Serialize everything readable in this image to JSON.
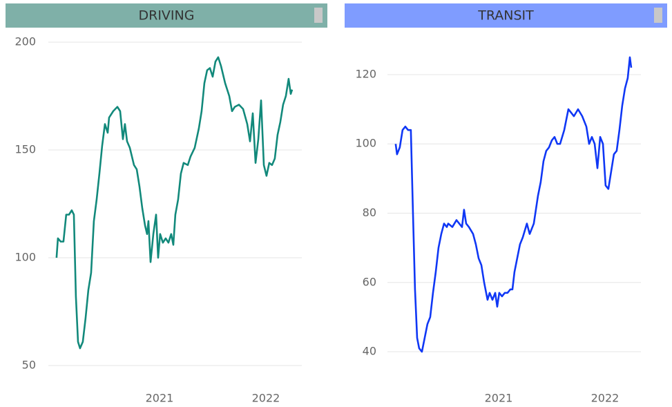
{
  "chart_data": [
    {
      "type": "line",
      "title": "DRIVING",
      "color": "#12897b",
      "header_color": "#7fb0a8",
      "xlim": [
        2019.955,
        2022.338
      ],
      "xticks": [
        2021,
        2022
      ],
      "ylim": [
        45,
        202
      ],
      "yticks": [
        50,
        100,
        150,
        200
      ],
      "grid": true,
      "x": [
        2020.032,
        2020.045,
        2020.071,
        2020.097,
        2020.123,
        2020.149,
        2020.175,
        2020.195,
        2020.214,
        2020.234,
        2020.253,
        2020.279,
        2020.305,
        2020.331,
        2020.357,
        2020.383,
        2020.409,
        2020.435,
        2020.461,
        2020.487,
        2020.513,
        2020.526,
        2020.565,
        2020.604,
        2020.63,
        2020.656,
        2020.675,
        2020.695,
        2020.721,
        2020.76,
        2020.786,
        2020.812,
        2020.838,
        2020.864,
        2020.883,
        2020.896,
        2020.916,
        2020.942,
        2020.968,
        2020.987,
        2021.006,
        2021.032,
        2021.058,
        2021.084,
        2021.11,
        2021.13,
        2021.149,
        2021.175,
        2021.201,
        2021.227,
        2021.266,
        2021.292,
        2021.331,
        2021.37,
        2021.396,
        2021.422,
        2021.448,
        2021.474,
        2021.5,
        2021.526,
        2021.552,
        2021.578,
        2021.617,
        2021.656,
        2021.682,
        2021.708,
        2021.747,
        2021.786,
        2021.825,
        2021.851,
        2021.877,
        2021.903,
        2021.929,
        2021.955,
        2021.981,
        2022.006,
        2022.032,
        2022.058,
        2022.084,
        2022.11,
        2022.136,
        2022.162,
        2022.188,
        2022.214,
        2022.234,
        2022.247
      ],
      "values": [
        100,
        109,
        107.5,
        107.5,
        120,
        120,
        122,
        120,
        82,
        61,
        58,
        61,
        72,
        85,
        93,
        117,
        127,
        139,
        152,
        162,
        158,
        165,
        168,
        170,
        168,
        155,
        162,
        154,
        151,
        143,
        141,
        133,
        123,
        115,
        111,
        117,
        98,
        111,
        120,
        100,
        111,
        107,
        109,
        107,
        111,
        106,
        120,
        127,
        139,
        144,
        143,
        147,
        151,
        160,
        168,
        181,
        187,
        188,
        184,
        191,
        193,
        189,
        181,
        175,
        168,
        170,
        171,
        169,
        162,
        154,
        167,
        144,
        155,
        173,
        143,
        138,
        144,
        143,
        146,
        157,
        163,
        171,
        175,
        183,
        176,
        178
      ]
    },
    {
      "type": "line",
      "title": "TRANSIT",
      "color": "#0f37f5",
      "header_color": "#7f9cff",
      "xlim": [
        2019.955,
        2022.338
      ],
      "xticks": [
        2021,
        2022
      ],
      "ylim": [
        35,
        126
      ],
      "yticks": [
        40,
        60,
        80,
        100,
        120
      ],
      "grid": true,
      "x": [
        2020.032,
        2020.045,
        2020.071,
        2020.097,
        2020.123,
        2020.149,
        2020.175,
        2020.195,
        2020.214,
        2020.234,
        2020.253,
        2020.279,
        2020.305,
        2020.331,
        2020.357,
        2020.383,
        2020.409,
        2020.435,
        2020.461,
        2020.487,
        2020.513,
        2020.526,
        2020.565,
        2020.604,
        2020.63,
        2020.656,
        2020.675,
        2020.695,
        2020.721,
        2020.76,
        2020.786,
        2020.812,
        2020.838,
        2020.864,
        2020.883,
        2020.896,
        2020.916,
        2020.942,
        2020.968,
        2020.987,
        2021.006,
        2021.032,
        2021.058,
        2021.084,
        2021.11,
        2021.13,
        2021.149,
        2021.175,
        2021.201,
        2021.227,
        2021.266,
        2021.292,
        2021.331,
        2021.37,
        2021.396,
        2021.422,
        2021.448,
        2021.474,
        2021.5,
        2021.526,
        2021.552,
        2021.578,
        2021.617,
        2021.656,
        2021.682,
        2021.708,
        2021.747,
        2021.786,
        2021.825,
        2021.851,
        2021.877,
        2021.903,
        2021.929,
        2021.955,
        2021.981,
        2022.006,
        2022.032,
        2022.058,
        2022.084,
        2022.11,
        2022.136,
        2022.162,
        2022.188,
        2022.214,
        2022.234,
        2022.247
      ],
      "values": [
        100,
        97,
        99,
        104,
        105,
        104,
        104,
        80,
        58,
        44,
        41,
        40,
        44,
        48,
        50,
        57,
        63,
        70,
        74,
        77,
        76,
        77,
        76,
        78,
        77,
        76,
        81,
        77,
        76,
        74,
        71,
        67,
        65,
        60,
        57,
        55,
        57,
        55,
        57,
        53,
        57,
        56,
        57,
        57,
        58,
        58,
        63,
        67,
        71,
        73,
        77,
        74,
        77,
        85,
        89,
        95,
        98,
        99,
        101,
        102,
        100,
        100,
        104,
        110,
        109,
        108,
        110,
        108,
        105,
        100,
        102,
        100,
        93,
        102,
        100,
        88,
        87,
        92,
        97,
        98,
        104,
        111,
        116,
        119,
        125,
        122
      ]
    }
  ]
}
